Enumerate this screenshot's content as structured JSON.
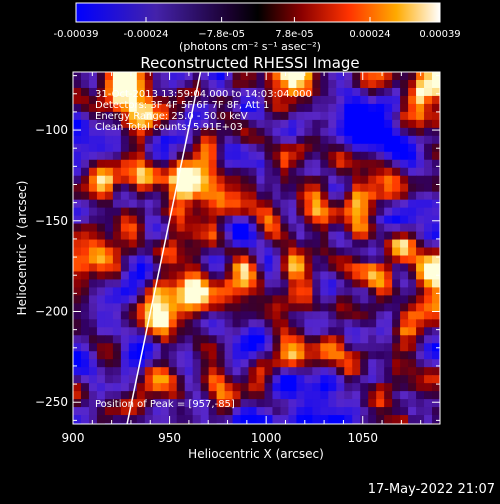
{
  "chart_data": {
    "type": "heatmap",
    "title": "Reconstructed RHESSI Image",
    "xlabel": "Heliocentric X (arcsec)",
    "ylabel": "Heliocentric Y (arcsec)",
    "xlim": [
      900,
      1090
    ],
    "ylim": [
      -262,
      -68
    ],
    "x_ticks": [
      900,
      950,
      1000,
      1050
    ],
    "y_ticks": [
      -100,
      -150,
      -200,
      -250
    ],
    "colorbar": {
      "range": [
        -0.00039,
        0.00039
      ],
      "tick_values": [
        -0.00039,
        -0.00024,
        -7.8e-05,
        7.8e-05,
        0.00024,
        0.00039
      ],
      "tick_labels": [
        "-0.00039",
        "-0.00024",
        "−7.8e-05",
        "7.8e-05",
        "0.00024",
        "0.00039"
      ],
      "unit_label": "(photons cm⁻² s⁻¹ asec⁻²)"
    },
    "annotations": [
      "31-Oct-2013 13:59:04.000 to 14:03:04.000",
      "Detectors: 3F 4F 5F 6F 7F 8F, Att 1",
      "Energy Range: 25.0 - 50.0 keV",
      "Clean     Total counts: 5.91E+03"
    ],
    "peak_label": "Position of Peak = [957,-85]",
    "peak": [
      957,
      -85
    ],
    "limb_line": {
      "x": [
        928,
        966
      ],
      "y": [
        -262,
        -68
      ]
    },
    "colors": {
      "low": "#0000ff",
      "mid": "#000000",
      "high": "#ffffff"
    }
  },
  "footer": {
    "timestamp": "17-May-2022 21:07"
  }
}
